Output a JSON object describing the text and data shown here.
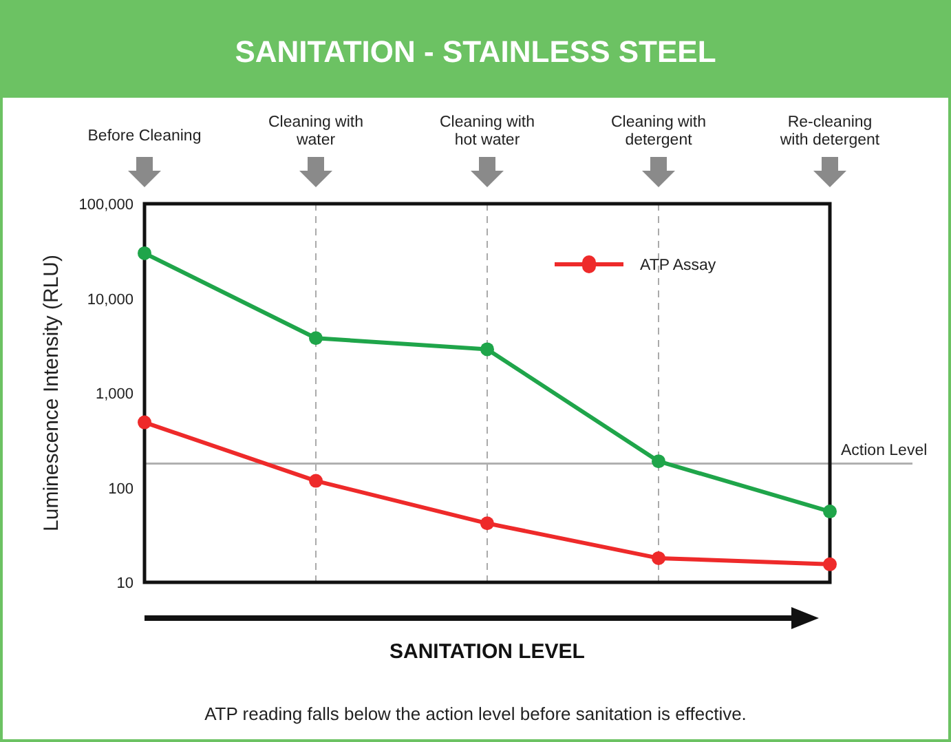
{
  "chart_data": {
    "type": "line",
    "title": "SANITATION - STAINLESS STEEL",
    "xlabel": "SANITATION LEVEL",
    "ylabel": "Luminescence Intensity (RLU)",
    "categories": [
      "Before Cleaning",
      "Cleaning with water",
      "Cleaning with hot water",
      "Cleaning with detergent",
      "Re-cleaning with detergent"
    ],
    "series": [
      {
        "color": "#1fa54a",
        "values": [
          30000,
          3800,
          2900,
          190,
          56
        ]
      },
      {
        "name": "ATP Assay",
        "color": "#ee2a2a",
        "values": [
          490,
          118,
          42,
          18,
          15.5
        ]
      }
    ],
    "log": "y",
    "ylim": [
      10,
      100000
    ],
    "yticks": [
      {
        "value": 10,
        "label": "10"
      },
      {
        "value": 100,
        "label": "100"
      },
      {
        "value": 1000,
        "label": "1,000"
      },
      {
        "value": 10000,
        "label": "10,000"
      },
      {
        "value": 100000,
        "label": "100,000"
      }
    ],
    "grid": "x",
    "legend": "top right",
    "marker": "circle",
    "line_style": "solid",
    "ref_lines": [
      {
        "axis": "y",
        "value": 180,
        "label": "Action Level",
        "color": "#b0b0b0"
      }
    ],
    "annotations": [
      "ATP reading falls below the action level before sanitation is effective."
    ]
  }
}
